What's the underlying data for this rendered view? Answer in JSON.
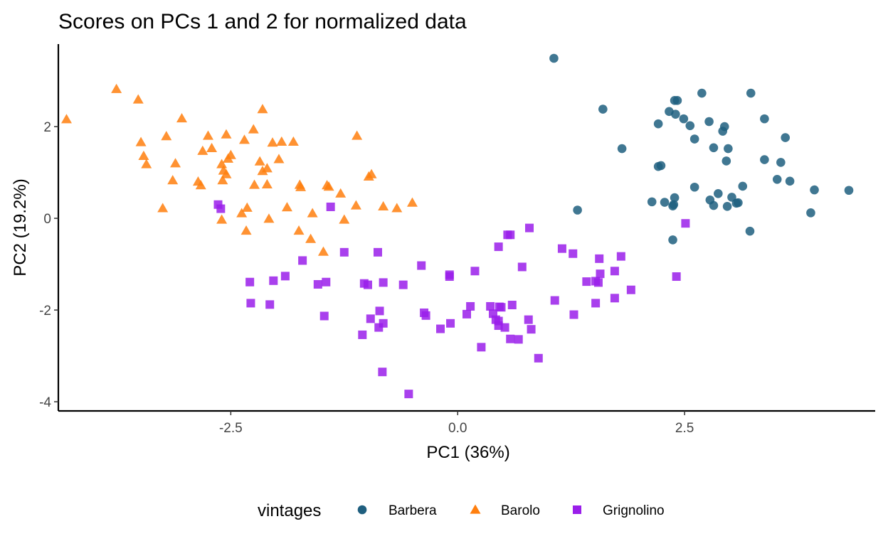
{
  "chart_data": {
    "type": "scatter",
    "title": "Scores on PCs 1 and 2 for normalized data",
    "xlabel": "PC1 (36%)",
    "ylabel": "PC2 (19.2%)",
    "xlim": [
      -4.4,
      4.6
    ],
    "ylim": [
      -4.2,
      3.8
    ],
    "xticks": [
      -2.5,
      0.0,
      2.5
    ],
    "xtick_labels": [
      "-2.5",
      "0.0",
      "2.5"
    ],
    "yticks": [
      -4,
      -2,
      0,
      2
    ],
    "ytick_labels": [
      "-4",
      "-2",
      "0",
      "2"
    ],
    "grid": false,
    "legend": {
      "title": "vintages",
      "position": "bottom"
    },
    "series": [
      {
        "name": "Barbera",
        "color": "#1f5f7f",
        "marker": "circle",
        "points": [
          [
            1.06,
            3.49
          ],
          [
            2.69,
            2.73
          ],
          [
            3.23,
            2.73
          ],
          [
            2.39,
            2.57
          ],
          [
            2.42,
            2.57
          ],
          [
            1.6,
            2.38
          ],
          [
            2.33,
            2.33
          ],
          [
            2.4,
            2.27
          ],
          [
            2.49,
            2.17
          ],
          [
            3.38,
            2.17
          ],
          [
            2.21,
            2.06
          ],
          [
            2.77,
            2.11
          ],
          [
            2.94,
            2.0
          ],
          [
            2.56,
            2.02
          ],
          [
            2.92,
            1.9
          ],
          [
            2.61,
            1.73
          ],
          [
            3.61,
            1.76
          ],
          [
            1.81,
            1.52
          ],
          [
            2.82,
            1.54
          ],
          [
            2.98,
            1.52
          ],
          [
            3.38,
            1.28
          ],
          [
            3.56,
            1.22
          ],
          [
            2.96,
            1.25
          ],
          [
            2.24,
            1.15
          ],
          [
            2.21,
            1.13
          ],
          [
            3.52,
            0.85
          ],
          [
            3.66,
            0.81
          ],
          [
            3.14,
            0.7
          ],
          [
            2.61,
            0.68
          ],
          [
            3.93,
            0.62
          ],
          [
            4.31,
            0.61
          ],
          [
            2.87,
            0.54
          ],
          [
            2.78,
            0.4
          ],
          [
            3.02,
            0.46
          ],
          [
            2.39,
            0.45
          ],
          [
            2.14,
            0.36
          ],
          [
            2.28,
            0.35
          ],
          [
            2.38,
            0.3
          ],
          [
            2.82,
            0.28
          ],
          [
            3.09,
            0.34
          ],
          [
            2.97,
            0.26
          ],
          [
            2.37,
            0.27
          ],
          [
            3.07,
            0.33
          ],
          [
            1.32,
            0.18
          ],
          [
            3.89,
            0.12
          ],
          [
            3.22,
            -0.28
          ],
          [
            2.37,
            -0.47
          ]
        ]
      },
      {
        "name": "Barolo",
        "color": "#ff7f0e",
        "marker": "triangle",
        "points": [
          [
            -4.31,
            2.16
          ],
          [
            -3.76,
            2.82
          ],
          [
            -3.52,
            2.59
          ],
          [
            -3.04,
            2.18
          ],
          [
            -2.15,
            2.38
          ],
          [
            -2.25,
            1.94
          ],
          [
            -2.75,
            1.8
          ],
          [
            -2.55,
            1.83
          ],
          [
            -3.21,
            1.79
          ],
          [
            -2.35,
            1.71
          ],
          [
            -1.94,
            1.67
          ],
          [
            -1.11,
            1.8
          ],
          [
            -2.04,
            1.65
          ],
          [
            -1.81,
            1.67
          ],
          [
            -3.49,
            1.66
          ],
          [
            -2.71,
            1.53
          ],
          [
            -2.81,
            1.47
          ],
          [
            -2.5,
            1.38
          ],
          [
            -2.53,
            1.3
          ],
          [
            -3.46,
            1.36
          ],
          [
            -3.43,
            1.18
          ],
          [
            -3.11,
            1.2
          ],
          [
            -2.18,
            1.24
          ],
          [
            -2.6,
            1.18
          ],
          [
            -1.97,
            1.29
          ],
          [
            -2.1,
            1.09
          ],
          [
            -2.15,
            1.03
          ],
          [
            -2.58,
            1.04
          ],
          [
            -2.55,
            0.96
          ],
          [
            -0.95,
            0.96
          ],
          [
            -0.98,
            0.91
          ],
          [
            -2.59,
            0.83
          ],
          [
            -2.86,
            0.8
          ],
          [
            -3.14,
            0.83
          ],
          [
            -2.24,
            0.73
          ],
          [
            -2.1,
            0.74
          ],
          [
            -2.83,
            0.72
          ],
          [
            -1.74,
            0.73
          ],
          [
            -1.73,
            0.68
          ],
          [
            -1.44,
            0.72
          ],
          [
            -1.42,
            0.69
          ],
          [
            -1.29,
            0.54
          ],
          [
            -0.5,
            0.34
          ],
          [
            -1.12,
            0.28
          ],
          [
            -0.82,
            0.26
          ],
          [
            -1.88,
            0.24
          ],
          [
            -0.67,
            0.22
          ],
          [
            -2.32,
            0.23
          ],
          [
            -3.25,
            0.22
          ],
          [
            -1.6,
            0.11
          ],
          [
            -2.38,
            0.11
          ],
          [
            -2.08,
            -0.01
          ],
          [
            -2.6,
            -0.03
          ],
          [
            -1.25,
            -0.03
          ],
          [
            -1.75,
            -0.27
          ],
          [
            -2.33,
            -0.27
          ],
          [
            -1.62,
            -0.45
          ],
          [
            -1.48,
            -0.73
          ]
        ]
      },
      {
        "name": "Grignolino",
        "color": "#9a1eea",
        "marker": "square",
        "points": [
          [
            -2.64,
            0.3
          ],
          [
            -2.61,
            0.21
          ],
          [
            -1.4,
            0.25
          ],
          [
            0.79,
            -0.21
          ],
          [
            0.58,
            -0.36
          ],
          [
            0.55,
            -0.36
          ],
          [
            2.51,
            -0.11
          ],
          [
            0.45,
            -0.62
          ],
          [
            1.15,
            -0.66
          ],
          [
            -1.25,
            -0.74
          ],
          [
            -0.88,
            -0.74
          ],
          [
            1.27,
            -0.77
          ],
          [
            1.56,
            -0.88
          ],
          [
            1.8,
            -0.83
          ],
          [
            -1.71,
            -0.92
          ],
          [
            0.71,
            -1.06
          ],
          [
            -0.4,
            -1.03
          ],
          [
            0.19,
            -1.15
          ],
          [
            1.73,
            -1.15
          ],
          [
            1.57,
            -1.21
          ],
          [
            -0.09,
            -1.23
          ],
          [
            -0.09,
            -1.27
          ],
          [
            2.41,
            -1.27
          ],
          [
            -1.9,
            -1.26
          ],
          [
            -2.03,
            -1.36
          ],
          [
            -2.29,
            -1.39
          ],
          [
            -1.54,
            -1.44
          ],
          [
            -1.45,
            -1.39
          ],
          [
            -0.82,
            -1.4
          ],
          [
            -1.03,
            -1.42
          ],
          [
            -0.99,
            -1.45
          ],
          [
            -0.6,
            -1.45
          ],
          [
            1.52,
            -1.37
          ],
          [
            1.42,
            -1.38
          ],
          [
            1.55,
            -1.4
          ],
          [
            1.91,
            -1.56
          ],
          [
            1.73,
            -1.74
          ],
          [
            1.07,
            -1.79
          ],
          [
            1.52,
            -1.85
          ],
          [
            -2.28,
            -1.85
          ],
          [
            -2.07,
            -1.88
          ],
          [
            0.14,
            -1.92
          ],
          [
            0.36,
            -1.92
          ],
          [
            0.46,
            -1.93
          ],
          [
            0.6,
            -1.89
          ],
          [
            0.48,
            -1.94
          ],
          [
            -0.86,
            -2.02
          ],
          [
            -0.37,
            -2.06
          ],
          [
            -0.35,
            -2.12
          ],
          [
            -1.47,
            -2.13
          ],
          [
            0.1,
            -2.09
          ],
          [
            0.39,
            -2.08
          ],
          [
            1.28,
            -2.1
          ],
          [
            -0.96,
            -2.19
          ],
          [
            0.45,
            -2.24
          ],
          [
            0.78,
            -2.21
          ],
          [
            0.42,
            -2.21
          ],
          [
            -0.82,
            -2.29
          ],
          [
            -0.87,
            -2.38
          ],
          [
            -0.08,
            -2.29
          ],
          [
            0.45,
            -2.34
          ],
          [
            0.52,
            -2.38
          ],
          [
            -0.19,
            -2.41
          ],
          [
            0.81,
            -2.42
          ],
          [
            -1.05,
            -2.54
          ],
          [
            0.58,
            -2.63
          ],
          [
            0.67,
            -2.64
          ],
          [
            0.26,
            -2.81
          ],
          [
            0.89,
            -3.05
          ],
          [
            -0.83,
            -3.35
          ],
          [
            -0.54,
            -3.83
          ]
        ]
      }
    ]
  }
}
